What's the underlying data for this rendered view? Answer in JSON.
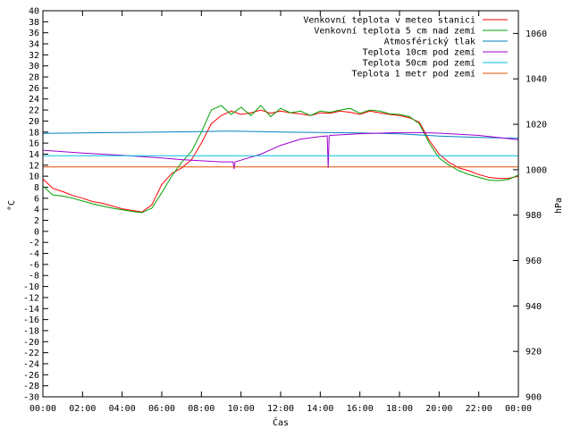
{
  "chart_data": {
    "type": "line",
    "title": "",
    "xlabel": "Čas",
    "ylabel_left": "°C",
    "ylabel_right": "hPa",
    "x_ticks": [
      "00:00",
      "02:00",
      "04:00",
      "06:00",
      "08:00",
      "10:00",
      "12:00",
      "14:00",
      "16:00",
      "18:00",
      "20:00",
      "22:00",
      "00:00"
    ],
    "x_range_hours": [
      0,
      24
    ],
    "ylim_left": [
      -30,
      40
    ],
    "y_ticks_left": [
      -30,
      -28,
      -26,
      -24,
      -22,
      -20,
      -18,
      -16,
      -14,
      -12,
      -10,
      -8,
      -6,
      -4,
      -2,
      0,
      2,
      4,
      6,
      8,
      10,
      12,
      14,
      16,
      18,
      20,
      22,
      24,
      26,
      28,
      30,
      32,
      34,
      36,
      38,
      40
    ],
    "ylim_right": [
      900,
      1070
    ],
    "y_ticks_right": [
      900,
      920,
      940,
      960,
      980,
      1000,
      1020,
      1040,
      1060
    ],
    "grid": false,
    "legend_position": "top-right",
    "series": [
      {
        "name": "Venkovní teplota v meteo stanici",
        "axis": "left",
        "color": "#ff0000",
        "x": [
          0,
          0.5,
          1,
          1.5,
          2,
          2.5,
          3,
          3.5,
          4,
          4.5,
          5,
          5.5,
          6,
          6.5,
          7,
          7.5,
          8,
          8.5,
          9,
          9.5,
          10,
          10.5,
          11,
          11.5,
          12,
          12.5,
          13,
          13.5,
          14,
          14.5,
          15,
          15.5,
          16,
          16.5,
          17,
          17.5,
          18,
          18.5,
          19,
          19.5,
          20,
          20.5,
          21,
          21.5,
          22,
          22.5,
          23,
          23.5,
          24
        ],
        "y": [
          9.5,
          7.8,
          7.2,
          6.5,
          6.0,
          5.4,
          5.1,
          4.6,
          4.1,
          3.8,
          3.5,
          4.8,
          8.5,
          10.5,
          11.5,
          13.0,
          16.0,
          19.5,
          21.0,
          21.8,
          21.2,
          21.5,
          22.0,
          21.4,
          21.8,
          21.5,
          21.3,
          21.0,
          21.5,
          21.4,
          21.8,
          21.6,
          21.2,
          21.8,
          21.5,
          21.2,
          21.0,
          20.6,
          19.8,
          16.5,
          14.0,
          12.5,
          11.5,
          11.0,
          10.3,
          9.8,
          9.6,
          9.6,
          10.0
        ]
      },
      {
        "name": "Venkovní teplota 5 cm nad zemí",
        "axis": "left",
        "color": "#00a000",
        "x": [
          0,
          0.5,
          1,
          1.5,
          2,
          2.5,
          3,
          3.5,
          4,
          4.5,
          5,
          5.5,
          6,
          6.5,
          7,
          7.5,
          8,
          8.5,
          9,
          9.5,
          10,
          10.5,
          11,
          11.5,
          12,
          12.5,
          13,
          13.5,
          14,
          14.5,
          15,
          15.5,
          16,
          16.5,
          17,
          17.5,
          18,
          18.5,
          19,
          19.5,
          20,
          20.5,
          21,
          21.5,
          22,
          22.5,
          23,
          23.5,
          24
        ],
        "y": [
          8.2,
          6.6,
          6.4,
          6.0,
          5.5,
          5.0,
          4.6,
          4.2,
          3.9,
          3.6,
          3.4,
          4.2,
          7.0,
          10.0,
          12.5,
          14.5,
          18.0,
          22.0,
          22.8,
          21.2,
          22.5,
          21.0,
          22.8,
          20.8,
          22.3,
          21.5,
          21.8,
          21.0,
          21.8,
          21.6,
          22.0,
          22.3,
          21.4,
          22.0,
          21.8,
          21.3,
          21.2,
          20.8,
          19.5,
          16.0,
          13.3,
          12.0,
          11.0,
          10.3,
          9.8,
          9.3,
          9.2,
          9.4,
          10.2
        ]
      },
      {
        "name": "Atmosférický tlak",
        "axis": "right",
        "color": "#0080c0",
        "x": [
          0,
          2,
          4,
          6,
          8,
          9,
          10,
          12,
          14,
          16,
          18,
          20,
          22,
          24
        ],
        "y": [
          1016,
          1016.2,
          1016.4,
          1016.6,
          1016.8,
          1017.0,
          1016.9,
          1016.6,
          1016.4,
          1016.2,
          1015.8,
          1014.8,
          1014.2,
          1013.8
        ]
      },
      {
        "name": "Teplota 10cm pod zemí",
        "axis": "left",
        "color": "#a000d0",
        "x": [
          0,
          2,
          4,
          6,
          7,
          8,
          9,
          9.6,
          9.65,
          9.7,
          10,
          11,
          12,
          13,
          14,
          14.35,
          14.4,
          14.45,
          14.5,
          15,
          16,
          17,
          18,
          19,
          20,
          21,
          22,
          23,
          24
        ],
        "y": [
          14.7,
          14.2,
          13.8,
          13.3,
          13.0,
          12.8,
          12.6,
          12.6,
          11.3,
          12.6,
          12.9,
          14.0,
          15.6,
          16.7,
          17.2,
          17.3,
          11.5,
          17.3,
          17.4,
          17.5,
          17.7,
          17.8,
          17.9,
          17.9,
          17.8,
          17.6,
          17.4,
          17.0,
          16.6
        ]
      },
      {
        "name": "Teplota 50cm pod zemí",
        "axis": "left",
        "color": "#00c0e0",
        "x": [
          0,
          24
        ],
        "y": [
          13.7,
          13.7
        ]
      },
      {
        "name": "Teplota 1 metr pod zemí",
        "axis": "left",
        "color": "#e05000",
        "x": [
          0,
          24
        ],
        "y": [
          11.7,
          11.7
        ]
      }
    ]
  }
}
